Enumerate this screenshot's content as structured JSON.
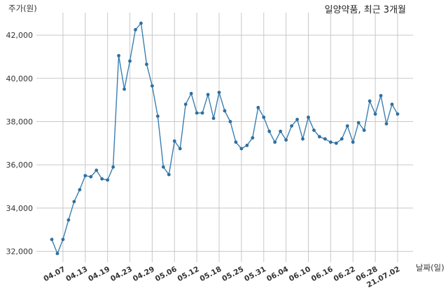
{
  "chart_data": {
    "type": "line",
    "title": "일양약품, 최근 3개월",
    "ylabel": "주가(원)",
    "xlabel": "날짜(일)",
    "ylim": [
      31500,
      43300
    ],
    "yticks": [
      32000,
      34000,
      36000,
      38000,
      40000,
      42000
    ],
    "ytick_labels": [
      "32,000",
      "34,000",
      "36,000",
      "38,000",
      "40,000",
      "42,000"
    ],
    "grid": true,
    "line_color": "#3b7fb0",
    "marker_color": "#2f6f9f",
    "x": [
      "04.05",
      "04.06",
      "04.07",
      "04.08",
      "04.09",
      "04.12",
      "04.13",
      "04.14",
      "04.15",
      "04.16",
      "04.19",
      "04.20",
      "04.21",
      "04.22",
      "04.23",
      "04.26",
      "04.27",
      "04.28",
      "04.29",
      "04.30",
      "05.03",
      "05.04",
      "05.06",
      "05.07",
      "05.10",
      "05.11",
      "05.12",
      "05.13",
      "05.14",
      "05.17",
      "05.18",
      "05.20",
      "05.21",
      "05.24",
      "05.25",
      "05.26",
      "05.27",
      "05.28",
      "05.31",
      "06.01",
      "06.02",
      "06.03",
      "06.04",
      "06.07",
      "06.08",
      "06.09",
      "06.10",
      "06.11",
      "06.14",
      "06.15",
      "06.16",
      "06.17",
      "06.18",
      "06.21",
      "06.22",
      "06.23",
      "06.24",
      "06.25",
      "06.28",
      "06.29",
      "06.30",
      "07.01",
      "07.02"
    ],
    "values": [
      32550,
      31900,
      32550,
      33450,
      34300,
      34850,
      35500,
      35450,
      35750,
      35350,
      35300,
      35900,
      41050,
      39500,
      40800,
      42250,
      42550,
      40650,
      39650,
      38250,
      35900,
      35550,
      37100,
      36750,
      38800,
      39300,
      38400,
      38400,
      39250,
      38150,
      39350,
      38500,
      38000,
      37050,
      36750,
      36900,
      37250,
      38650,
      38200,
      37550,
      37050,
      37550,
      37150,
      37800,
      38100,
      37200,
      38200,
      37600,
      37300,
      37200,
      37050,
      37000,
      37200,
      37800,
      37050,
      37950,
      37600,
      38950,
      38350,
      39200,
      37900,
      38800,
      38350
    ],
    "xtick_labels": [
      "04.07",
      "04.13",
      "04.19",
      "04.23",
      "04.29",
      "05.06",
      "05.12",
      "05.18",
      "05.25",
      "05.31",
      "06.04",
      "06.10",
      "06.16",
      "06.22",
      "06.28",
      "21.07.02"
    ],
    "xtick_indices": [
      2,
      6,
      10,
      14,
      18,
      22,
      26,
      30,
      34,
      38,
      42,
      46,
      50,
      54,
      58,
      62
    ]
  }
}
